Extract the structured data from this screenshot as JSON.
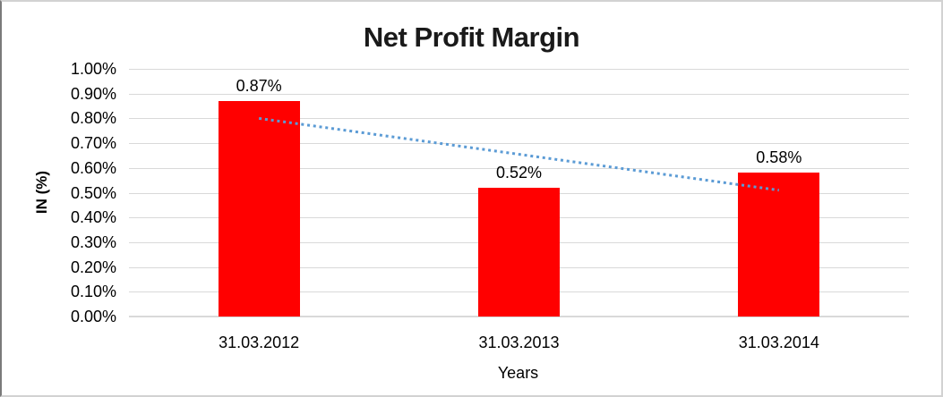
{
  "chart_data": {
    "type": "bar",
    "title": "Net Profit Margin",
    "xlabel": "Years",
    "ylabel": "IN (%)",
    "categories": [
      "31.03.2012",
      "31.03.2013",
      "31.03.2014"
    ],
    "values": [
      0.87,
      0.52,
      0.58
    ],
    "data_labels": [
      "0.87%",
      "0.52%",
      "0.58%"
    ],
    "ylim": [
      0,
      1.0
    ],
    "ytick_step": 0.1,
    "ytick_labels": [
      "1.00%",
      "0.90%",
      "0.80%",
      "0.70%",
      "0.60%",
      "0.50%",
      "0.40%",
      "0.30%",
      "0.20%",
      "0.10%",
      "0.00%"
    ],
    "grid": true,
    "legend": "none",
    "colors": {
      "bar": "#ff0000",
      "gridline": "#d9d9d9",
      "axis_line": "#d9d9d9",
      "trendline": "#5b9bd5",
      "text": "#000000",
      "title": "#1a1a1a"
    },
    "trendline": {
      "type": "linear",
      "style": "dotted",
      "color": "#5b9bd5",
      "start_value": 0.8,
      "end_value": 0.51
    }
  }
}
